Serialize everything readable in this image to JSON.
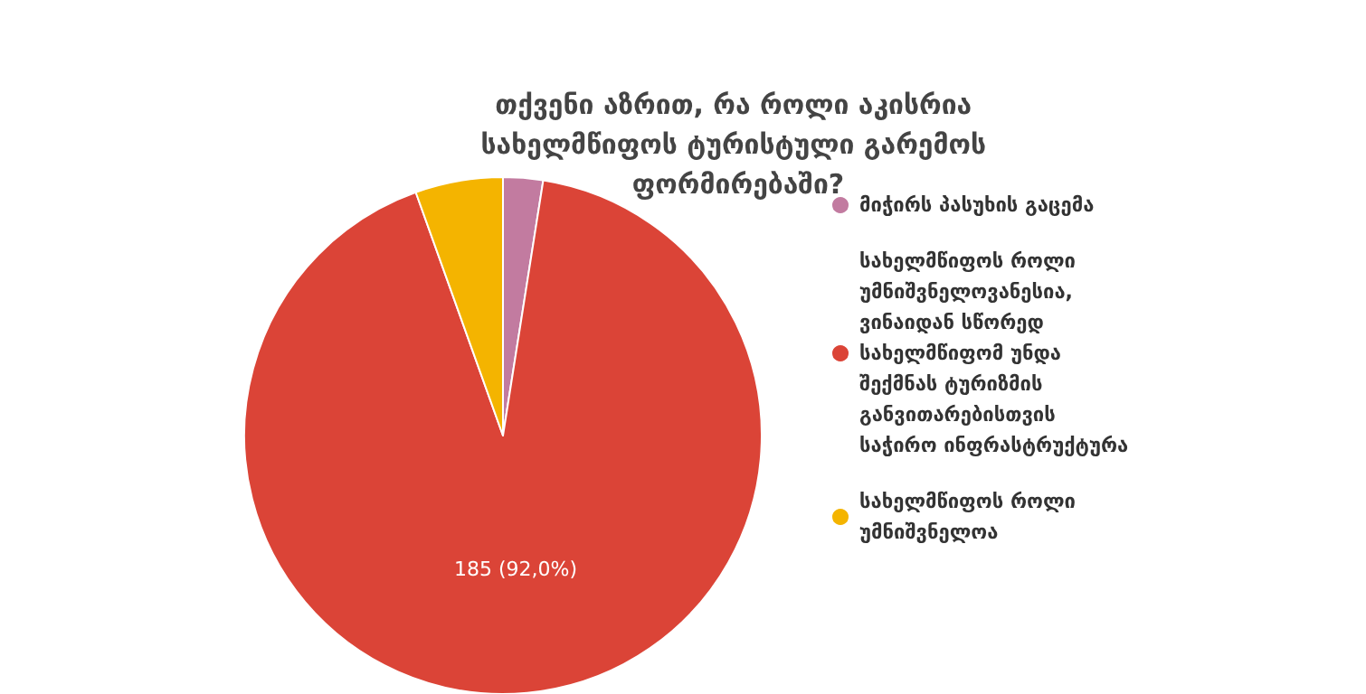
{
  "chart_data": {
    "type": "pie",
    "title": "თქვენი აზრით, რა როლი აკისრია სახელმწიფოს ტურისტული გარემოს ფორმირებაში?",
    "categories": [
      "მიჭირს პასუხის გაცემა",
      "სახელმწიფოს როლი უმნიშვნელოვანესია, ვინაიდან სწორედ სახელმწიფომ უნდა შექმნას ტურიზმის განვითარებისთვის საჭირო ინფრასტრუქტურა",
      "სახელმწიფოს როლი უმნიშვნელოა"
    ],
    "values": [
      5,
      185,
      11
    ],
    "colors": [
      "#c27ba0",
      "#db4437",
      "#f4b400"
    ],
    "value_labels": [
      null,
      "185 (92,0%)",
      null
    ],
    "legend": "right"
  }
}
